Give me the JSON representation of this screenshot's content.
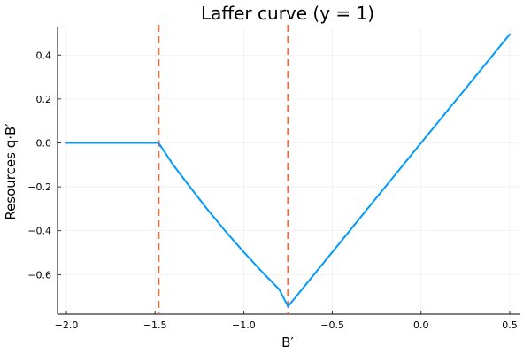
{
  "chart_data": {
    "type": "line",
    "title": "Laffer curve  (y = 1)",
    "xlabel": "B′",
    "ylabel": "Resources  q·B′",
    "xlim": [
      -2.05,
      0.56
    ],
    "ylim": [
      -0.78,
      0.53
    ],
    "xticks": [
      -2.0,
      -1.5,
      -1.0,
      -0.5,
      0.0,
      0.5
    ],
    "xtick_labels": [
      "−2.0",
      "−1.5",
      "−1.0",
      "−0.5",
      "0.0",
      "0.5"
    ],
    "yticks": [
      -0.6,
      -0.4,
      -0.2,
      0.0,
      0.2,
      0.4
    ],
    "ytick_labels": [
      "−0.6",
      "−0.4",
      "−0.2",
      "0.0",
      "0.2",
      "0.4"
    ],
    "grid": true,
    "legend": "none",
    "series": [
      {
        "color": "#009AFA",
        "x": [
          -2.0,
          -1.48,
          -1.4,
          -1.3,
          -1.2,
          -1.1,
          -1.0,
          -0.9,
          -0.8,
          -0.75,
          -0.5,
          -0.25,
          0.0,
          0.25,
          0.5
        ],
        "y": [
          0.0,
          0.0,
          -0.097,
          -0.204,
          -0.307,
          -0.405,
          -0.497,
          -0.584,
          -0.667,
          -0.745,
          -0.497,
          -0.248,
          0.0,
          0.247,
          0.495
        ]
      }
    ],
    "vlines": [
      {
        "x": -1.48,
        "color": "#E26F46",
        "style": "dashed"
      },
      {
        "x": -0.75,
        "color": "#E26F46",
        "style": "dashed"
      }
    ]
  }
}
